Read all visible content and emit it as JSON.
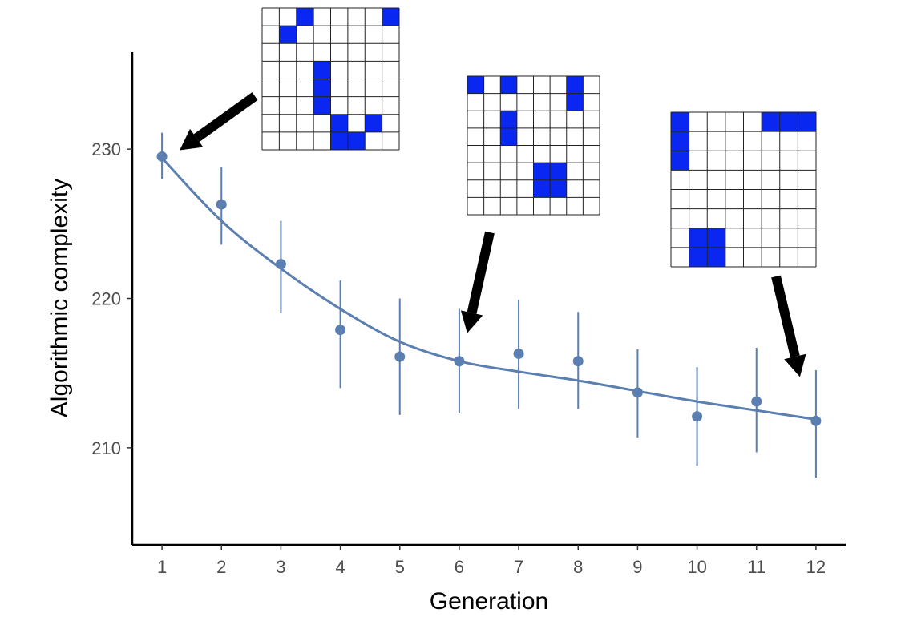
{
  "chart_data": {
    "type": "scatter",
    "xlabel": "Generation",
    "ylabel": "Algorithmic complexity",
    "x": [
      1,
      2,
      3,
      4,
      5,
      6,
      7,
      8,
      9,
      10,
      11,
      12
    ],
    "x_ticks": [
      "1",
      "2",
      "3",
      "4",
      "5",
      "6",
      "7",
      "8",
      "9",
      "10",
      "11",
      "12"
    ],
    "y_ticks": [
      210,
      220,
      230
    ],
    "xlim": [
      0.5,
      12.5
    ],
    "ylim": [
      203.5,
      236.5
    ],
    "grid": false,
    "series": [
      {
        "kind": "points_with_error_bars",
        "y": [
          229.5,
          226.3,
          222.3,
          217.9,
          216.1,
          215.8,
          216.3,
          215.8,
          213.7,
          212.1,
          213.1,
          211.8
        ],
        "y_low": [
          228.0,
          223.6,
          219.0,
          214.0,
          212.2,
          212.3,
          212.6,
          212.6,
          210.7,
          208.8,
          209.7,
          208.0
        ],
        "y_high": [
          231.1,
          228.8,
          225.2,
          221.2,
          220.0,
          219.3,
          219.9,
          219.1,
          216.6,
          215.4,
          216.7,
          215.2
        ]
      },
      {
        "kind": "smooth_line",
        "y": [
          229.4,
          225.2,
          222.0,
          219.3,
          217.1,
          215.8,
          215.1,
          214.5,
          213.8,
          213.1,
          212.5,
          211.9
        ]
      }
    ],
    "colors": {
      "series": "#5a7fb0",
      "grid_cell": "#0a27f2",
      "arrow": "#000000"
    },
    "insets": [
      {
        "generation": 1,
        "cols": 8,
        "rows": 8,
        "filled": [
          [
            0,
            2
          ],
          [
            0,
            7
          ],
          [
            1,
            1
          ],
          [
            3,
            3
          ],
          [
            4,
            3
          ],
          [
            5,
            3
          ],
          [
            6,
            4
          ],
          [
            6,
            6
          ],
          [
            7,
            4
          ],
          [
            7,
            5
          ]
        ]
      },
      {
        "generation": 6,
        "cols": 8,
        "rows": 8,
        "filled": [
          [
            0,
            0
          ],
          [
            0,
            2
          ],
          [
            0,
            6
          ],
          [
            1,
            6
          ],
          [
            2,
            2
          ],
          [
            3,
            2
          ],
          [
            5,
            4
          ],
          [
            5,
            5
          ],
          [
            6,
            4
          ],
          [
            6,
            5
          ]
        ]
      },
      {
        "generation": 12,
        "cols": 8,
        "rows": 8,
        "filled": [
          [
            0,
            0
          ],
          [
            0,
            5
          ],
          [
            0,
            6
          ],
          [
            0,
            7
          ],
          [
            1,
            0
          ],
          [
            2,
            0
          ],
          [
            6,
            1
          ],
          [
            6,
            2
          ],
          [
            7,
            1
          ],
          [
            7,
            2
          ]
        ]
      }
    ]
  }
}
